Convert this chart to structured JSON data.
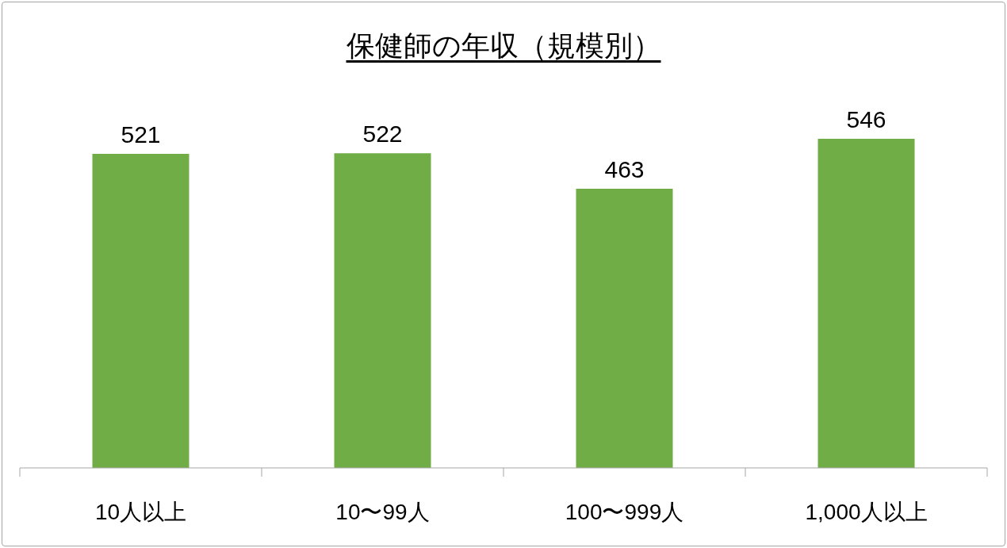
{
  "chart_data": {
    "type": "bar",
    "title": "保健師の年収（規模別）",
    "categories": [
      "10人以上",
      "10〜99人",
      "100〜999人",
      "1,000人以上"
    ],
    "values": [
      521,
      522,
      463,
      546
    ],
    "color": "#70ad47",
    "data_labels": true,
    "tick_labels": "x"
  }
}
